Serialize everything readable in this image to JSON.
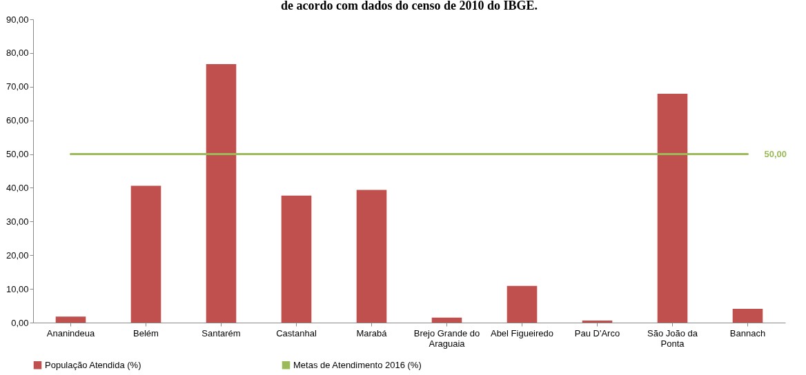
{
  "chart_data": {
    "type": "bar",
    "title": "de acordo com dados do censo de 2010 do IBGE.",
    "categories": [
      "Ananindeua",
      "Belém",
      "Santarém",
      "Castanhal",
      "Marabá",
      "Brejo Grande do Araguaia",
      "Abel Figueiredo",
      "Pau D'Arco",
      "São João da Ponta",
      "Bannach"
    ],
    "series": [
      {
        "name": "População Atendida (%)",
        "color": "#c0504d",
        "values": [
          1.8,
          40.6,
          76.7,
          37.7,
          39.4,
          1.5,
          10.9,
          0.6,
          67.9,
          4.1
        ]
      },
      {
        "name": "Metas de Atendimento 2016 (%)",
        "type": "line",
        "color": "#9bbb59",
        "values": [
          50,
          50,
          50,
          50,
          50,
          50,
          50,
          50,
          50,
          50
        ],
        "value_labels": [
          null,
          null,
          null,
          null,
          null,
          null,
          null,
          null,
          null,
          "50,00"
        ]
      }
    ],
    "ylim": [
      0,
      90
    ],
    "yticks": [
      {
        "value": 0,
        "label": "0,00"
      },
      {
        "value": 10,
        "label": "10,00"
      },
      {
        "value": 20,
        "label": "20,00"
      },
      {
        "value": 30,
        "label": "30,00"
      },
      {
        "value": 40,
        "label": "40,00"
      },
      {
        "value": 50,
        "label": "50,00"
      },
      {
        "value": 60,
        "label": "60,00"
      },
      {
        "value": 70,
        "label": "70,00"
      },
      {
        "value": 80,
        "label": "80,00"
      },
      {
        "value": 90,
        "label": "90,00"
      }
    ],
    "grid": false,
    "legend": "bottom"
  }
}
